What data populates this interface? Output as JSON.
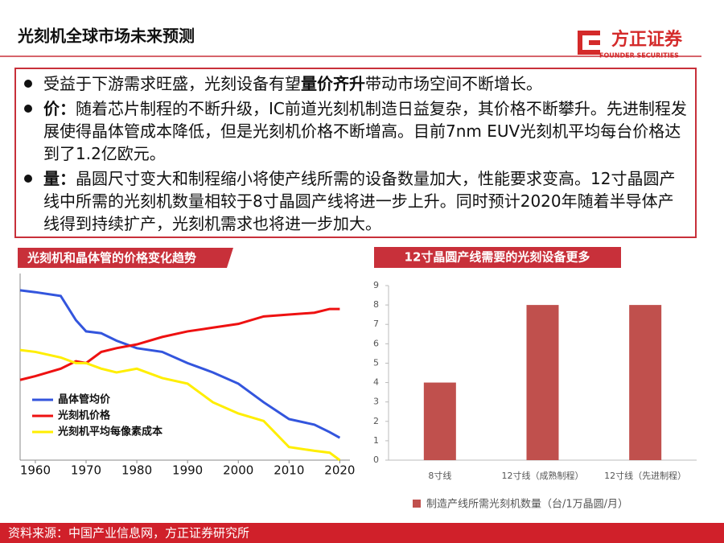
{
  "header": {
    "title": "光刻机全球市场未来预测",
    "logo_name": "方正证券",
    "logo_subtitle": "FOUNDER SECURITIES"
  },
  "bullets": [
    [
      {
        "text": "受益于下游需求旺盛，光刻设备有望"
      },
      {
        "text": "量价齐升",
        "bold": true
      },
      {
        "text": "带动市场空间不断增长。"
      }
    ],
    [
      {
        "text": "价：",
        "bold": true
      },
      {
        "text": "随着芯片制程的不断升级，IC前道光刻机制造日益复杂，其价格不断攀升。先进制程发展使得晶体管成本降低，但是光刻机价格不断增高。目前7nm EUV光刻机平均每台价格达到了1.2亿欧元。"
      }
    ],
    [
      {
        "text": "量：",
        "bold": true
      },
      {
        "text": "晶圆尺寸变大和制程缩小将使产线所需的设备数量加大，性能要求变高。12寸晶圆产线中所需的光刻机数量相较于8寸晶圆产线将进一步上升。同时预计2020年随着半导体产线得到持续扩产，光刻机需求也将进一步加大。"
      }
    ]
  ],
  "chart_data": [
    {
      "type": "line",
      "title": "光刻机和晶体管的价格变化趋势",
      "x": [
        1957,
        1960,
        1965,
        1968,
        1970,
        1973,
        1976,
        1980,
        1985,
        1990,
        1995,
        2000,
        2005,
        2010,
        2015,
        2018,
        2020
      ],
      "xlim": [
        1957,
        2022
      ],
      "xticks": [
        1960,
        1970,
        1980,
        1990,
        2000,
        2010,
        2020
      ],
      "ylim": [
        0,
        100
      ],
      "series": [
        {
          "name": "晶体管均价",
          "color": "#3355dd",
          "values": [
            91,
            90,
            88,
            75,
            69,
            68,
            64,
            60,
            58,
            52,
            47,
            41,
            31,
            22,
            19,
            15,
            12
          ]
        },
        {
          "name": "光刻机价格",
          "color": "#ee1111",
          "values": [
            43,
            45,
            49,
            53,
            52,
            58,
            60,
            62,
            66,
            69,
            71,
            73,
            77,
            78,
            79,
            81,
            81
          ]
        },
        {
          "name": "光刻机平均每像素成本",
          "color": "#ffee00",
          "values": [
            59,
            58,
            55,
            52,
            52,
            49,
            47,
            49,
            44,
            41,
            31,
            25,
            21,
            7,
            5,
            4,
            0
          ]
        }
      ]
    },
    {
      "type": "bar",
      "title": "12寸晶圆产线需要的光刻设备更多",
      "categories": [
        "8寸线",
        "12寸线（成熟制程）",
        "12寸线（先进制程）"
      ],
      "series": [
        {
          "name": "制造产线所需光刻机数量（台/1万晶圆/月）",
          "color": "#c0504d",
          "values": [
            4,
            8,
            8
          ]
        }
      ],
      "ylim": [
        0,
        9
      ],
      "yticks": [
        0,
        1,
        2,
        3,
        4,
        5,
        6,
        7,
        8,
        9
      ]
    }
  ],
  "footer": {
    "source": "资料来源：中国产业信息网，方正证券研究所"
  }
}
